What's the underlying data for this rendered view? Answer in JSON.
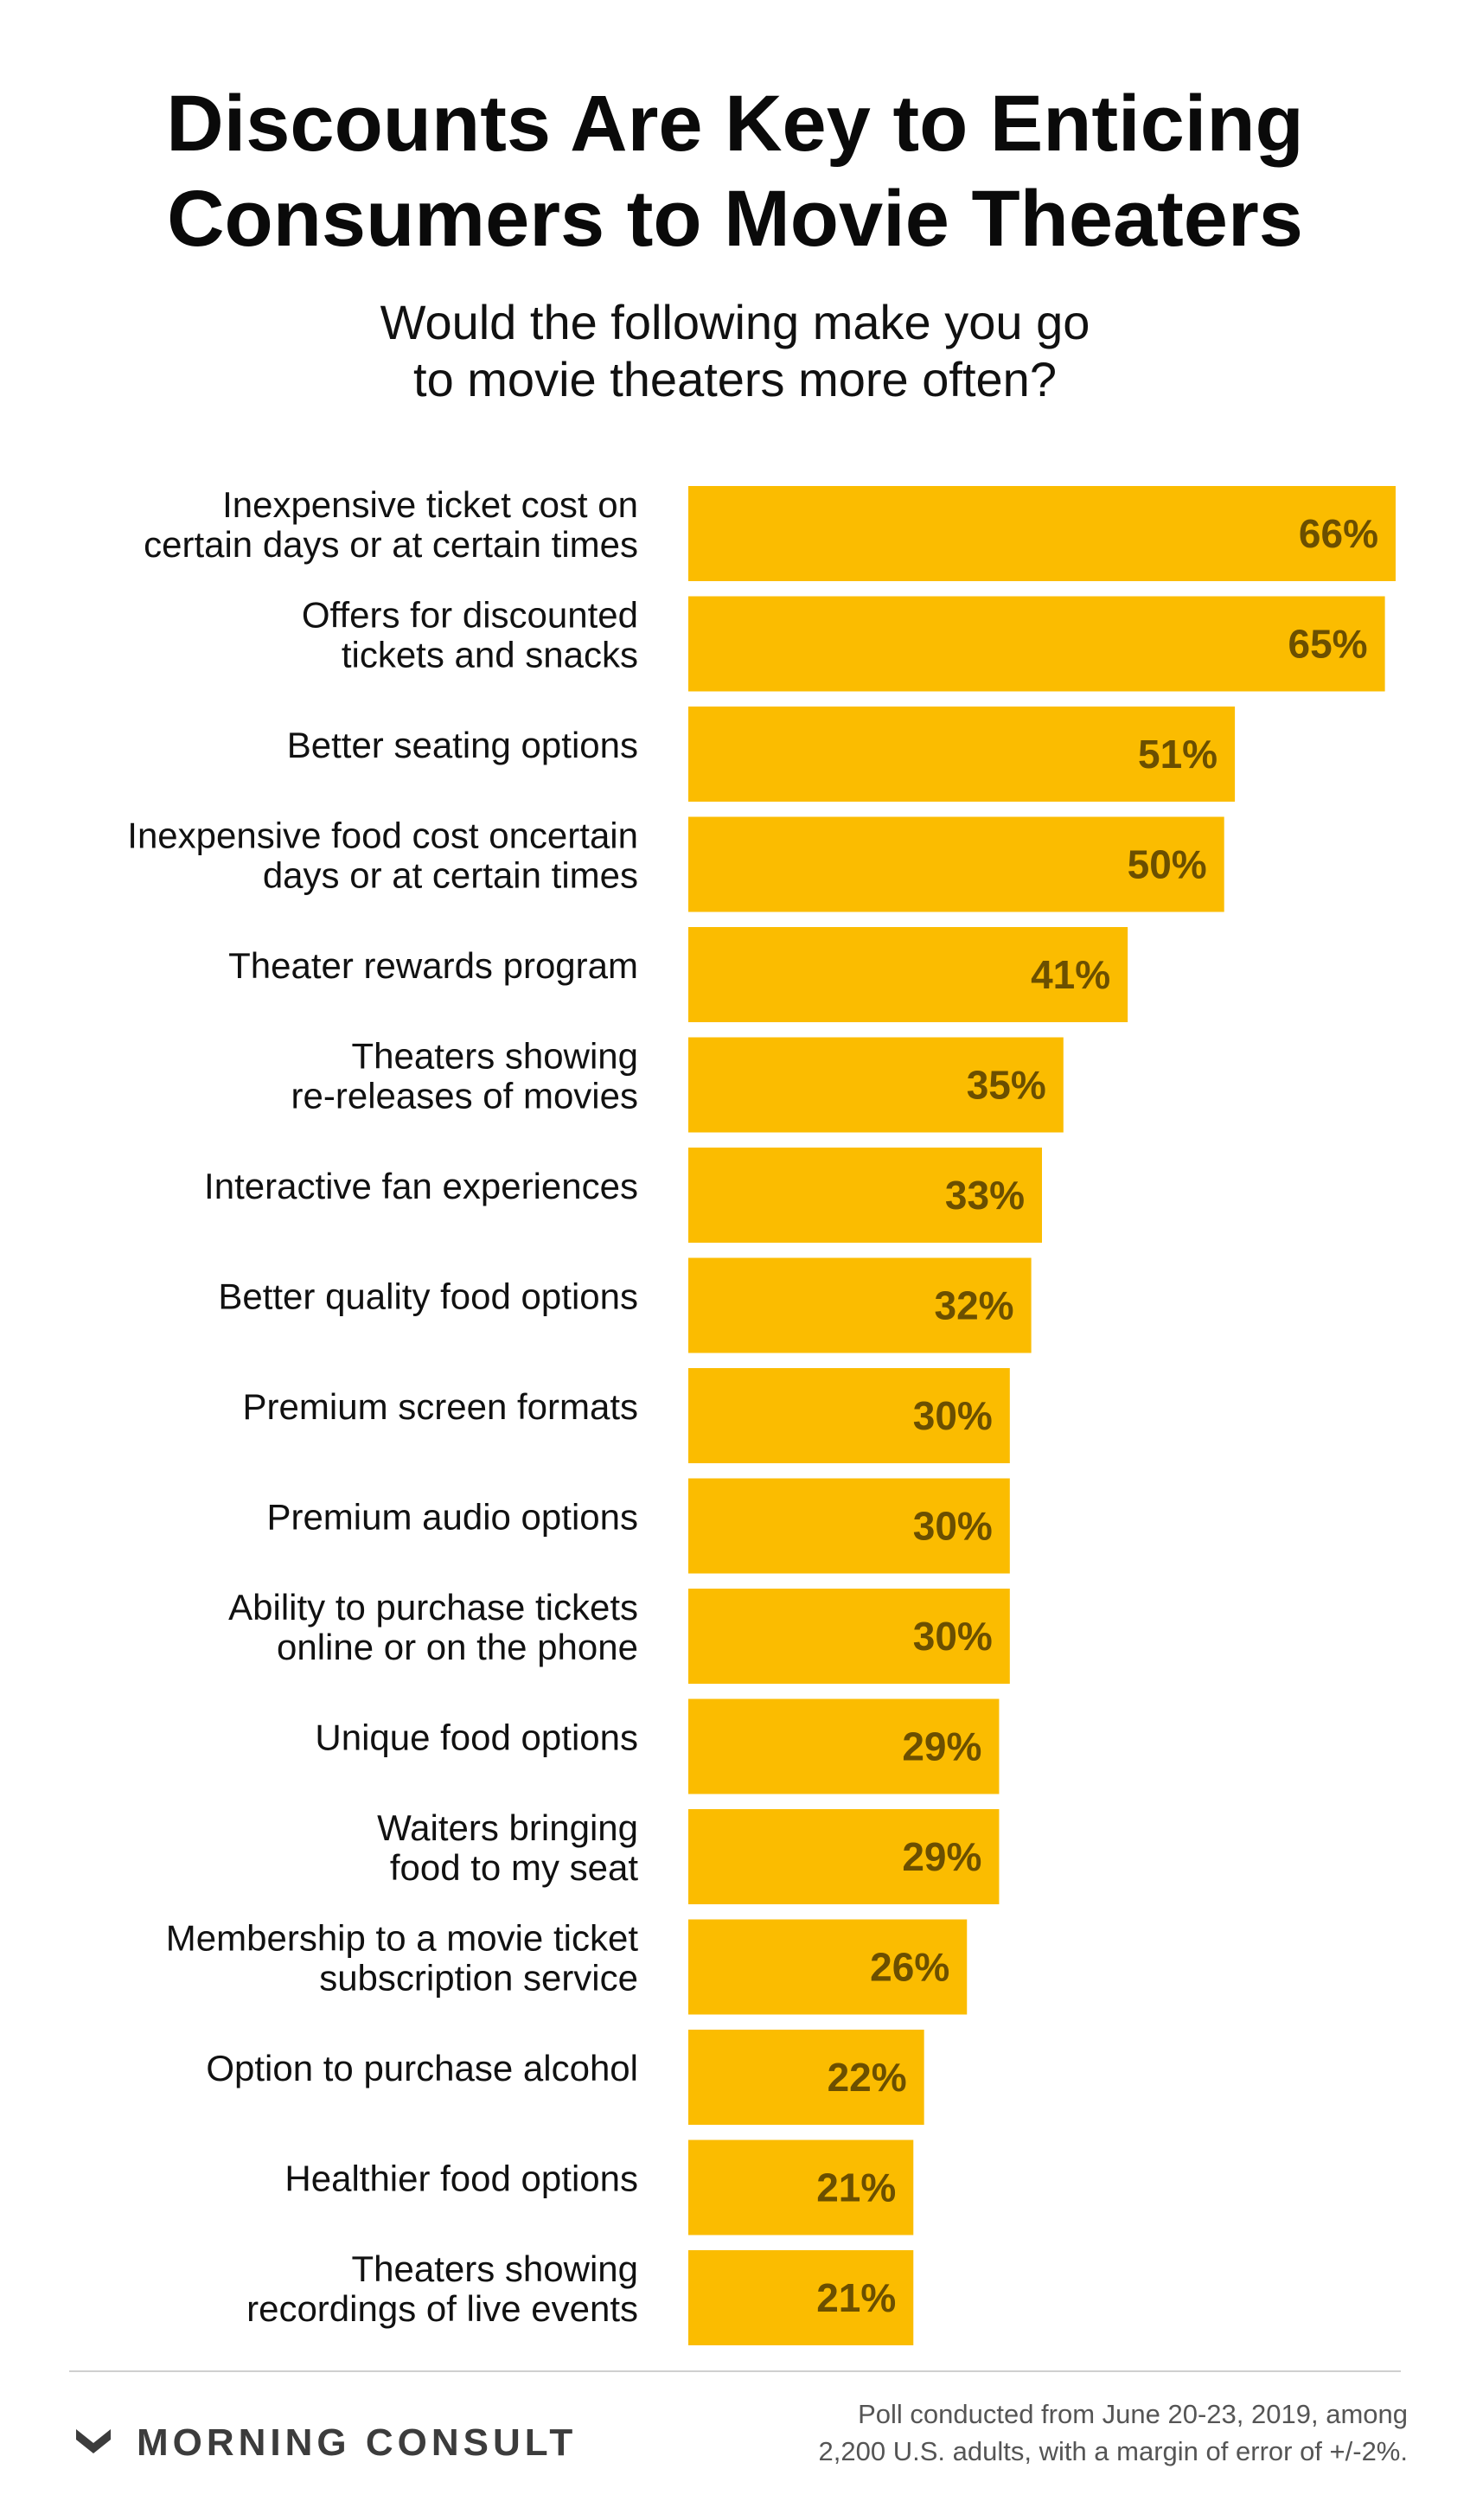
{
  "chart_data": {
    "type": "bar",
    "orientation": "horizontal",
    "title": [
      "Discounts Are Key to Enticing",
      "Consumers to Movie Theaters"
    ],
    "subtitle": [
      "Would the following make you go",
      "to movie theaters more often?"
    ],
    "xlim": [
      0,
      66
    ],
    "value_suffix": "%",
    "bar_color": "#FBBC00",
    "value_label_color": "#6B4F00",
    "categories": [
      [
        "Inexpensive ticket cost on",
        "certain days or at certain times"
      ],
      [
        "Offers for discounted",
        "tickets and snacks"
      ],
      [
        "Better seating options"
      ],
      [
        "Inexpensive food cost oncertain",
        "days or at certain times"
      ],
      [
        "Theater rewards program"
      ],
      [
        "Theaters showing",
        "re-releases of movies"
      ],
      [
        "Interactive fan experiences"
      ],
      [
        "Better quality food options"
      ],
      [
        "Premium screen formats"
      ],
      [
        "Premium audio options"
      ],
      [
        "Ability to purchase tickets",
        "online or on the phone"
      ],
      [
        "Unique food options"
      ],
      [
        "Waiters bringing",
        "food to my seat"
      ],
      [
        "Membership to a movie ticket",
        "subscription service"
      ],
      [
        "Option to purchase alcohol"
      ],
      [
        "Healthier food options"
      ],
      [
        "Theaters showing",
        "recordings of live events"
      ]
    ],
    "values": [
      66,
      65,
      51,
      50,
      41,
      35,
      33,
      32,
      30,
      30,
      30,
      29,
      29,
      26,
      22,
      21,
      21
    ]
  },
  "footer": {
    "brand": "MORNING CONSULT",
    "logo_icon": "morning-consult-chevron-icon",
    "logo_color": "#3C3C3C",
    "note": [
      "Poll conducted from June 20-23, 2019, among",
      "2,200 U.S. adults, with a margin of error of +/-2%."
    ]
  }
}
